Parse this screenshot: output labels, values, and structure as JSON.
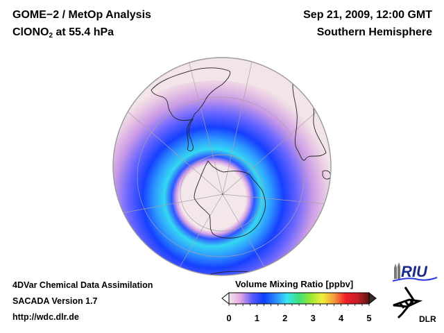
{
  "header": {
    "title_line1": "GOME−2 / MetOp Analysis",
    "species_main": "ClONO",
    "species_sub": "2",
    "species_rest": " at 55.4 hPa",
    "date": "Sep 21, 2009, 12:00 GMT",
    "region": "Southern Hemisphere"
  },
  "footer": {
    "line1": "4DVar Chemical Data Assimilation",
    "line2": "SACADA Version 1.7",
    "line3": "http://wdc.dlr.de"
  },
  "colorbar": {
    "title": "Volume Mixing Ratio [ppbv]",
    "ticks": [
      "0",
      "1",
      "2",
      "3",
      "4",
      "5"
    ],
    "min": 0,
    "max": 5,
    "stops": [
      "#f3e6ea",
      "#e2a6e0",
      "#5a5cff",
      "#0a3cff",
      "#2a8cff",
      "#38e6f0",
      "#3ee07a",
      "#9be635",
      "#f0f03c",
      "#f59a3a",
      "#f01e28",
      "#c81e28",
      "#5a1414"
    ]
  },
  "logos": {
    "riu": "RIU",
    "dlr": "DLR"
  },
  "map": {
    "projection": "orthographic",
    "hemisphere": "south",
    "ocean_color": "#f2e4e8",
    "ring_values_ppbv": [
      0.2,
      0.5,
      1.0,
      1.5,
      1.9,
      1.6,
      1.0,
      0.3
    ]
  }
}
